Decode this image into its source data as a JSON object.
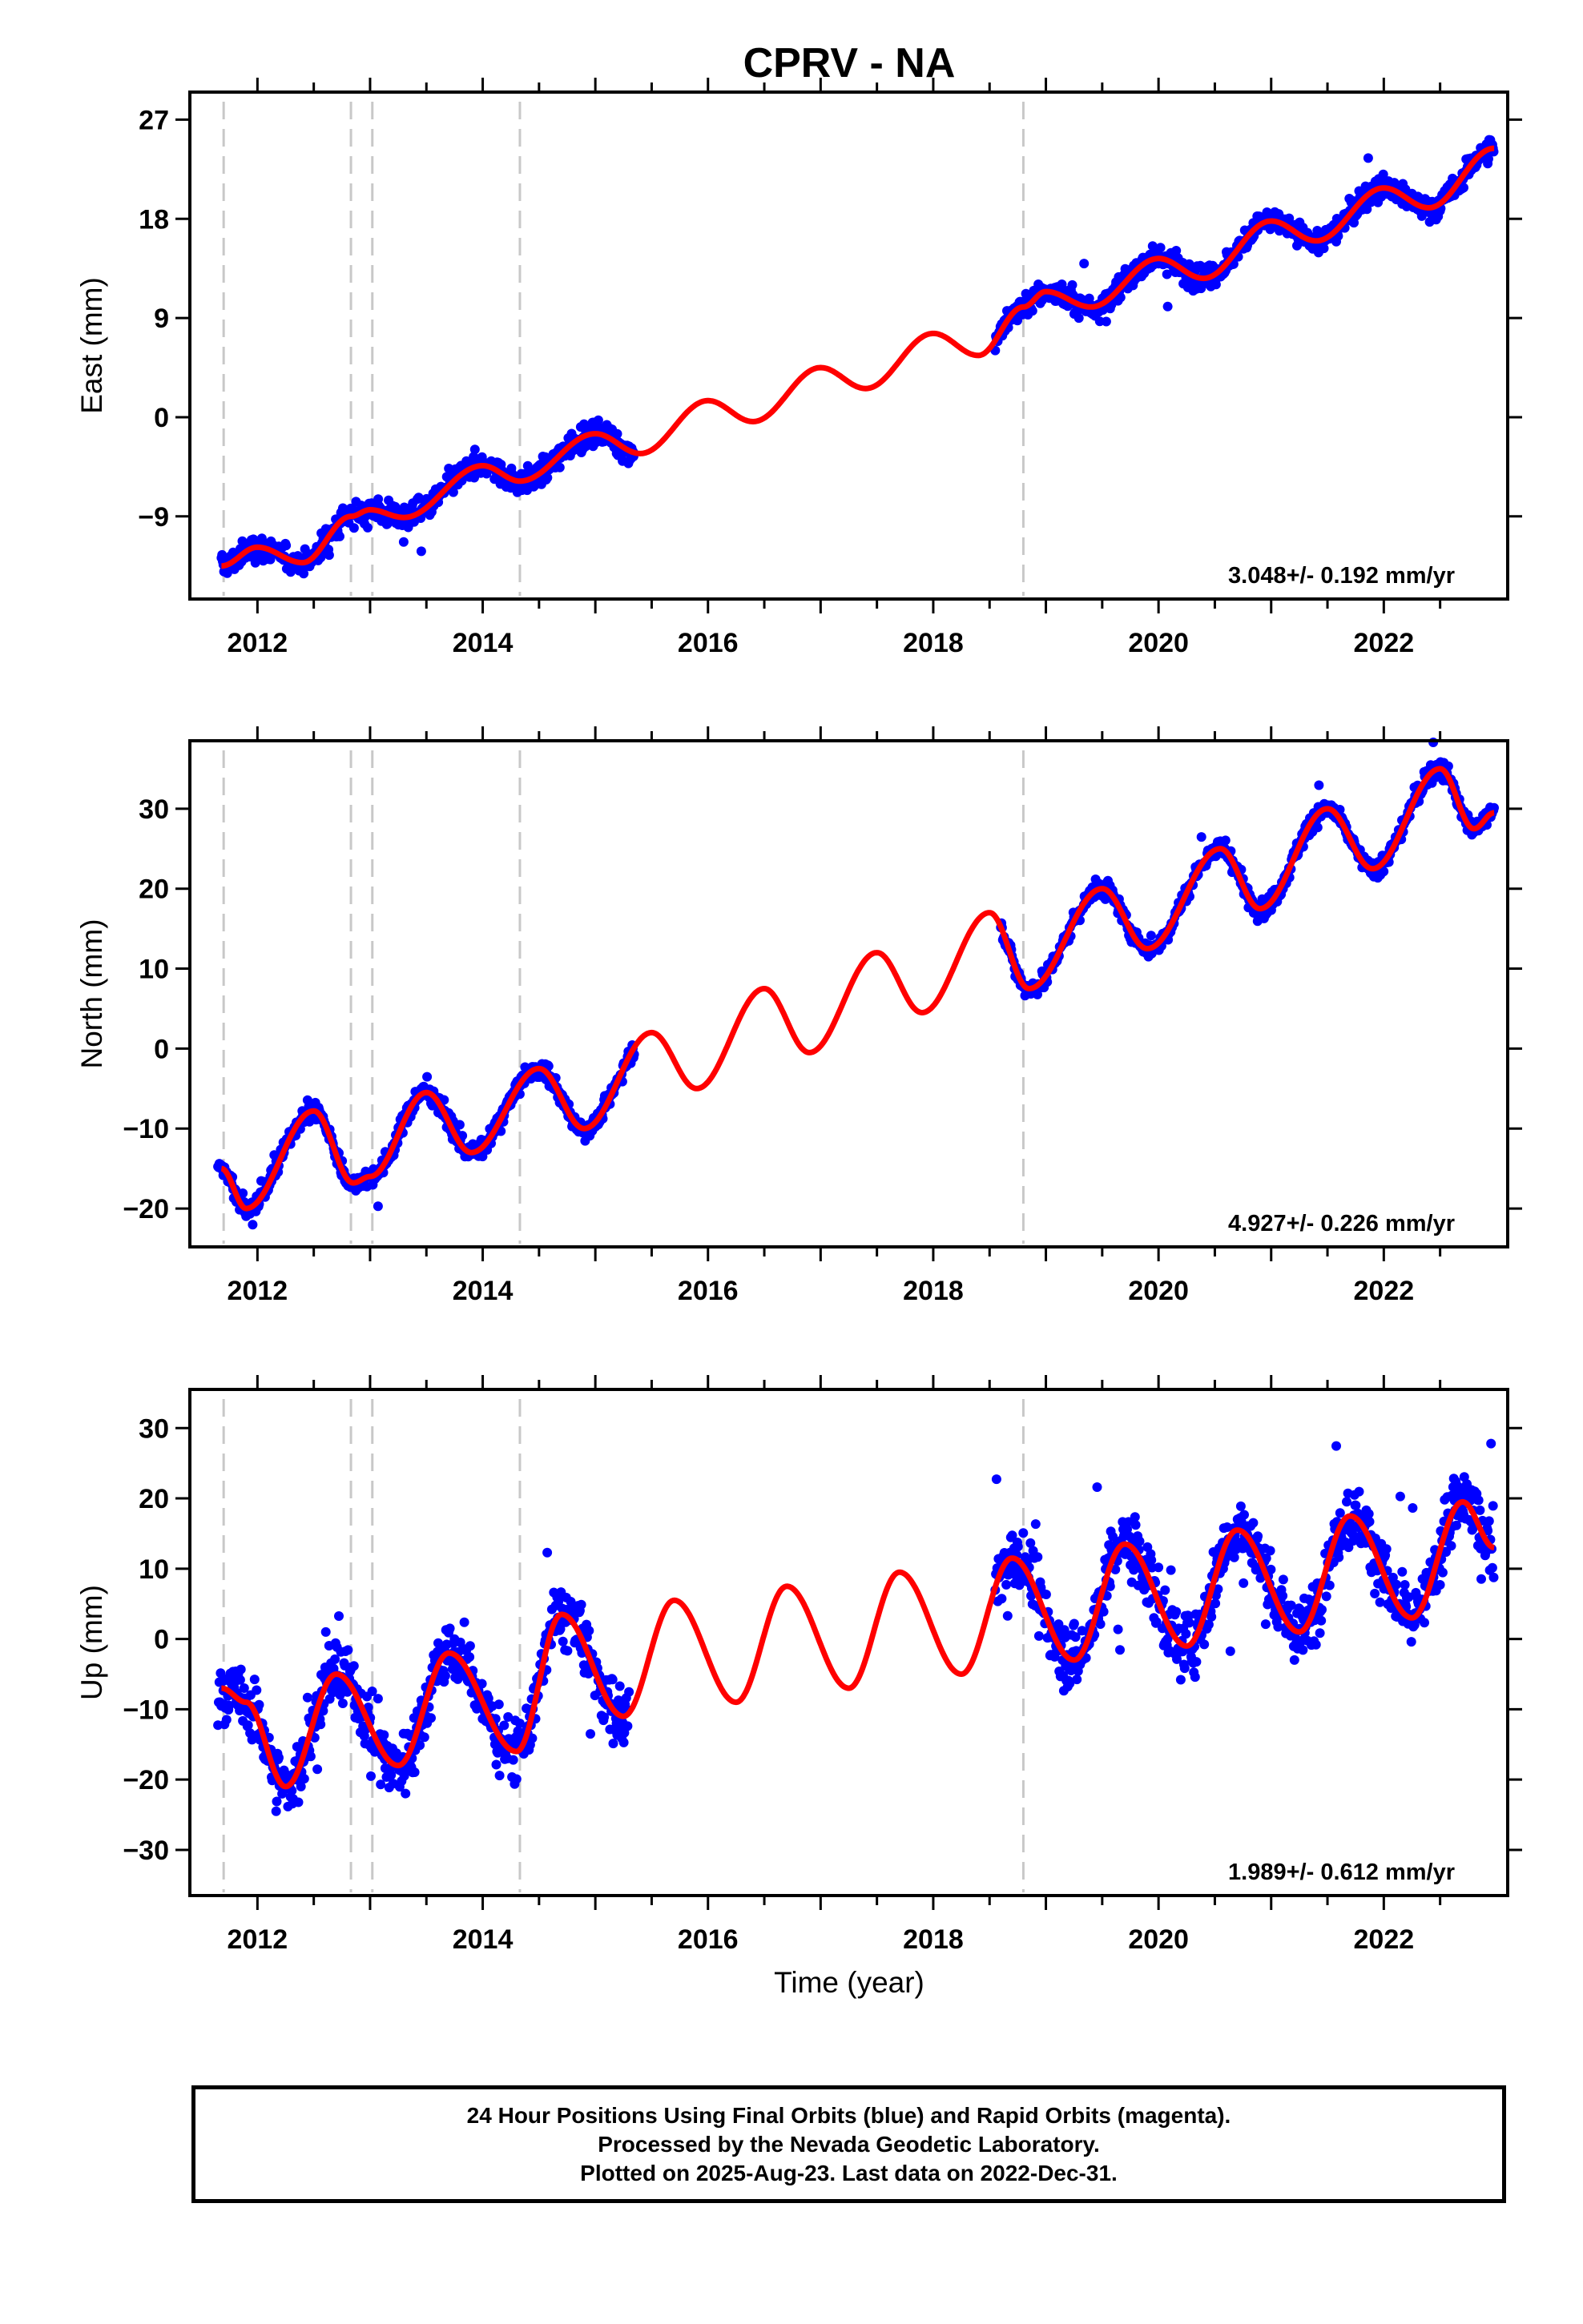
{
  "title": "CPRV - NA",
  "xlabel": "Time (year)",
  "colors": {
    "final_orbits": "#0000ff",
    "model": "#ff0000",
    "breaks": "#c8c8c8"
  },
  "chart_data": [
    {
      "type": "scatter",
      "name": "east",
      "ylabel": "East (mm)",
      "rate_text": "3.048+/- 0.192 mm/yr",
      "xlim": [
        2011.4,
        2023.1
      ],
      "ylim": [
        -16.5,
        29.5
      ],
      "yticks": [
        -9,
        0,
        9,
        18,
        27
      ],
      "xticks": [
        2012,
        2014,
        2016,
        2018,
        2020,
        2022
      ],
      "breaks": [
        2011.7,
        2012.83,
        2013.02,
        2014.33,
        2018.8
      ],
      "segments": [
        [
          2011.68,
          2015.35
        ],
        [
          2018.55,
          2022.98
        ]
      ],
      "model": [
        [
          2011.68,
          -13.5
        ],
        [
          2012.0,
          -11.8
        ],
        [
          2012.4,
          -13.2
        ],
        [
          2012.83,
          -9.0
        ],
        [
          2013.0,
          -8.4
        ],
        [
          2013.3,
          -9.1
        ],
        [
          2014.0,
          -4.4
        ],
        [
          2014.33,
          -5.8
        ],
        [
          2015.0,
          -1.5
        ],
        [
          2015.4,
          -3.3
        ],
        [
          2016.0,
          1.5
        ],
        [
          2016.4,
          -0.4
        ],
        [
          2017.0,
          4.5
        ],
        [
          2017.4,
          2.6
        ],
        [
          2018.0,
          7.6
        ],
        [
          2018.4,
          5.6
        ],
        [
          2018.8,
          10.0
        ],
        [
          2019.0,
          11.4
        ],
        [
          2019.4,
          10.0
        ],
        [
          2020.0,
          14.4
        ],
        [
          2020.4,
          12.6
        ],
        [
          2021.0,
          17.8
        ],
        [
          2021.4,
          16.0
        ],
        [
          2022.0,
          20.8
        ],
        [
          2022.4,
          19.0
        ],
        [
          2022.98,
          24.4
        ]
      ],
      "noise": 1.1,
      "outlier_rate": 0.01
    },
    {
      "type": "scatter",
      "name": "north",
      "ylabel": "North (mm)",
      "rate_text": "4.927+/- 0.226 mm/yr",
      "xlim": [
        2011.4,
        2023.1
      ],
      "ylim": [
        -24.8,
        38.5
      ],
      "yticks": [
        -20,
        -10,
        0,
        10,
        20,
        30
      ],
      "xticks": [
        2012,
        2014,
        2016,
        2018,
        2020,
        2022
      ],
      "breaks": [
        2011.7,
        2012.83,
        2013.02,
        2014.33,
        2018.8
      ],
      "segments": [
        [
          2011.65,
          2015.35
        ],
        [
          2018.6,
          2022.98
        ]
      ],
      "model": [
        [
          2011.68,
          -15.0
        ],
        [
          2011.9,
          -20.0
        ],
        [
          2012.5,
          -7.8
        ],
        [
          2012.85,
          -16.8
        ],
        [
          2013.0,
          -16.0
        ],
        [
          2013.5,
          -5.5
        ],
        [
          2013.9,
          -13.0
        ],
        [
          2014.5,
          -2.5
        ],
        [
          2014.9,
          -10.0
        ],
        [
          2015.5,
          2.0
        ],
        [
          2015.9,
          -5.0
        ],
        [
          2016.5,
          7.5
        ],
        [
          2016.9,
          -0.5
        ],
        [
          2017.5,
          12.0
        ],
        [
          2017.9,
          4.5
        ],
        [
          2018.5,
          17.0
        ],
        [
          2018.85,
          7.5
        ],
        [
          2019.5,
          20.0
        ],
        [
          2019.9,
          12.5
        ],
        [
          2020.55,
          25.0
        ],
        [
          2020.9,
          17.5
        ],
        [
          2021.5,
          30.0
        ],
        [
          2021.9,
          22.5
        ],
        [
          2022.5,
          35.0
        ],
        [
          2022.8,
          27.5
        ],
        [
          2022.98,
          29.5
        ]
      ],
      "noise": 1.2,
      "outlier_rate": 0.01
    },
    {
      "type": "scatter",
      "name": "up",
      "ylabel": "Up (mm)",
      "rate_text": "1.989+/- 0.612 mm/yr",
      "xlim": [
        2011.4,
        2023.1
      ],
      "ylim": [
        -36.5,
        35.5
      ],
      "yticks": [
        -30,
        -20,
        -10,
        0,
        10,
        20,
        30
      ],
      "xticks": [
        2012,
        2014,
        2016,
        2018,
        2020,
        2022
      ],
      "breaks": [
        2011.7,
        2012.83,
        2013.02,
        2014.33,
        2018.8
      ],
      "segments": [
        [
          2011.65,
          2015.3
        ],
        [
          2018.55,
          2022.98
        ]
      ],
      "model": [
        [
          2011.68,
          -7.0
        ],
        [
          2011.9,
          -9.0
        ],
        [
          2012.25,
          -21.0
        ],
        [
          2012.7,
          -5.0
        ],
        [
          2013.25,
          -18.0
        ],
        [
          2013.7,
          -2.0
        ],
        [
          2014.3,
          -16.0
        ],
        [
          2014.7,
          3.5
        ],
        [
          2015.25,
          -11.0
        ],
        [
          2015.7,
          5.5
        ],
        [
          2016.25,
          -9.0
        ],
        [
          2016.7,
          7.5
        ],
        [
          2017.25,
          -7.0
        ],
        [
          2017.7,
          9.5
        ],
        [
          2018.25,
          -5.0
        ],
        [
          2018.7,
          11.5
        ],
        [
          2019.25,
          -3.0
        ],
        [
          2019.7,
          13.5
        ],
        [
          2020.25,
          -1.0
        ],
        [
          2020.7,
          15.5
        ],
        [
          2021.25,
          1.0
        ],
        [
          2021.7,
          17.5
        ],
        [
          2022.25,
          3.0
        ],
        [
          2022.7,
          19.5
        ],
        [
          2022.98,
          13.0
        ]
      ],
      "noise": 4.5,
      "outlier_rate": 0.02
    }
  ],
  "footer": {
    "line1": "24 Hour Positions Using Final Orbits (blue) and Rapid Orbits (magenta).",
    "line2": "Processed by the Nevada Geodetic Laboratory.",
    "line3": "Plotted on 2025-Aug-23. Last data on 2022-Dec-31."
  }
}
